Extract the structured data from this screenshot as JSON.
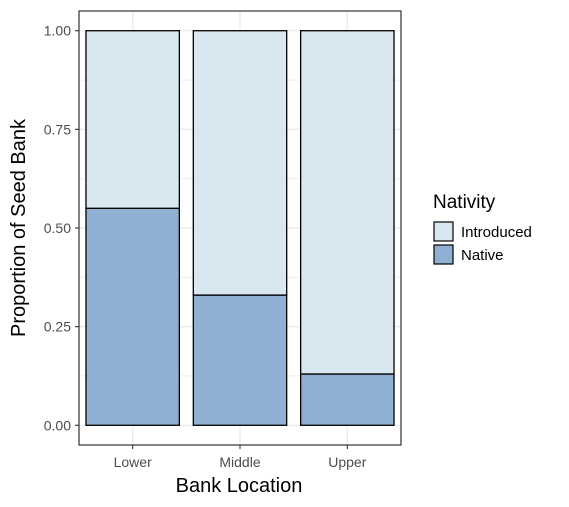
{
  "chart_data": {
    "type": "bar",
    "stacked": true,
    "categories": [
      "Lower",
      "Middle",
      "Upper"
    ],
    "series": [
      {
        "name": "Native",
        "values": [
          0.55,
          0.33,
          0.13
        ]
      },
      {
        "name": "Introduced",
        "values": [
          0.45,
          0.67,
          0.87
        ]
      }
    ],
    "xlabel": "Bank Location",
    "ylabel": "Proportion of Seed Bank",
    "ylim": [
      -0.05,
      1.05
    ],
    "yticks": [
      "0.00",
      "0.25",
      "0.50",
      "0.75",
      "1.00"
    ],
    "ytick_values": [
      0,
      0.25,
      0.5,
      0.75,
      1.0
    ],
    "grid": true,
    "legend": {
      "title": "Nativity",
      "position": "right",
      "entries": [
        "Introduced",
        "Native"
      ]
    },
    "colors": {
      "Native": "#8fb0d3",
      "Introduced": "#d9e7f0",
      "bar_outline": "#000000",
      "grid": "#ebebeb",
      "panel_border": "#333333"
    }
  }
}
